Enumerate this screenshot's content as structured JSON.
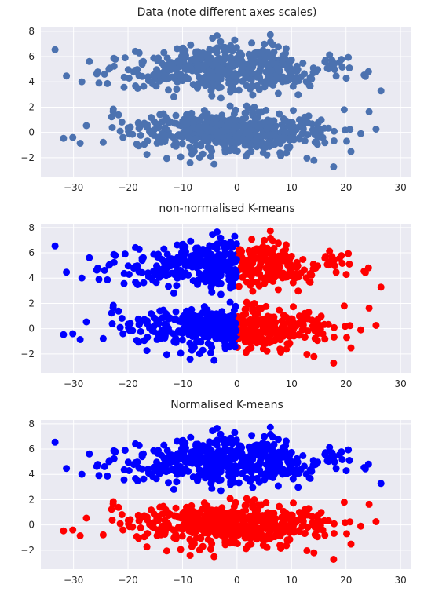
{
  "chart_data": [
    {
      "type": "scatter",
      "title": "Data (note different axes scales)",
      "xlim": [
        -36,
        32
      ],
      "ylim": [
        -3.5,
        8.3
      ],
      "xticks": [
        -30,
        -20,
        -10,
        0,
        10,
        20,
        30
      ],
      "yticks": [
        -2,
        0,
        2,
        4,
        6,
        8
      ],
      "grid": true,
      "colors": {
        "default": "#4c72b0",
        "background": "#eaeaf2"
      },
      "cluster_assignment": "none",
      "clusters": [
        {
          "name": "upper",
          "center_x": -2.5,
          "center_y": 5.0,
          "spread_x": 10.0,
          "spread_y": 0.9,
          "x_range": [
            -34.5,
            31
          ],
          "y_range": [
            2.1,
            7.8
          ],
          "count": 500
        },
        {
          "name": "lower",
          "center_x": -1.5,
          "center_y": 0.0,
          "spread_x": 9.5,
          "spread_y": 0.9,
          "x_range": [
            -32.5,
            27
          ],
          "y_range": [
            -3.0,
            2.3
          ],
          "count": 500
        }
      ]
    },
    {
      "type": "scatter",
      "title": "non-normalised K-means",
      "xlim": [
        -36,
        32
      ],
      "ylim": [
        -3.5,
        8.3
      ],
      "xticks": [
        -30,
        -20,
        -10,
        0,
        10,
        20,
        30
      ],
      "yticks": [
        -2,
        0,
        2,
        4,
        6,
        8
      ],
      "grid": true,
      "colors": {
        "cluster_a": "#0000ff",
        "cluster_b": "#ff0000",
        "background": "#eaeaf2"
      },
      "cluster_assignment": "split at x = 0 (x < 0 blue, x >= 0 red)"
    },
    {
      "type": "scatter",
      "title": "Normalised K-means",
      "xlim": [
        -36,
        32
      ],
      "ylim": [
        -3.5,
        8.3
      ],
      "xticks": [
        -30,
        -20,
        -10,
        0,
        10,
        20,
        30
      ],
      "yticks": [
        -2,
        0,
        2,
        4,
        6,
        8
      ],
      "grid": true,
      "colors": {
        "cluster_a": "#0000ff",
        "cluster_b": "#ff0000",
        "background": "#eaeaf2"
      },
      "cluster_assignment": "split at y = 2.4 (upper blue, lower red)"
    }
  ]
}
